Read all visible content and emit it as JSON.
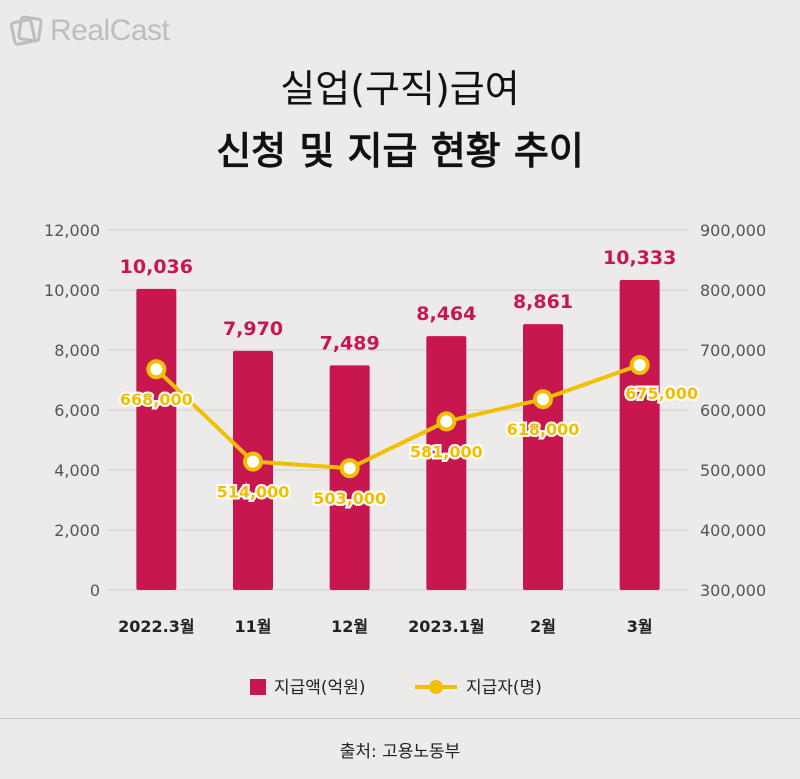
{
  "logo": {
    "text": "RealCast"
  },
  "title": {
    "line1": "실업(구직)급여",
    "line2": "신청 및 지급 현황 추이"
  },
  "chart_data": {
    "type": "bar+line",
    "categories": [
      "2022.3월",
      "11월",
      "12월",
      "2023.1월",
      "2월",
      "3월"
    ],
    "series": [
      {
        "name": "지급액(억원)",
        "type": "bar",
        "axis": "left",
        "values": [
          10036,
          7970,
          7489,
          8464,
          8861,
          10333
        ],
        "labels": [
          "10,036",
          "7,970",
          "7,489",
          "8,464",
          "8,861",
          "10,333"
        ],
        "color": "#c8174f"
      },
      {
        "name": "지급자(명)",
        "type": "line",
        "axis": "right",
        "values": [
          668000,
          514000,
          503000,
          581000,
          618000,
          675000
        ],
        "labels": [
          "668,000",
          "514,000",
          "503,000",
          "581,000",
          "618,000",
          "675,000"
        ],
        "color": "#f0c000"
      }
    ],
    "y_left": {
      "lim": [
        0,
        12000
      ],
      "ticks": [
        "0",
        "2,000",
        "4,000",
        "6,000",
        "8,000",
        "10,000",
        "12,000"
      ]
    },
    "y_right": {
      "lim": [
        300000,
        900000
      ],
      "ticks": [
        "300,000",
        "400,000",
        "500,000",
        "600,000",
        "700,000",
        "800,000",
        "900,000"
      ]
    },
    "grid": true,
    "legend": "bottom-center"
  },
  "source": "출처: 고용노동부"
}
